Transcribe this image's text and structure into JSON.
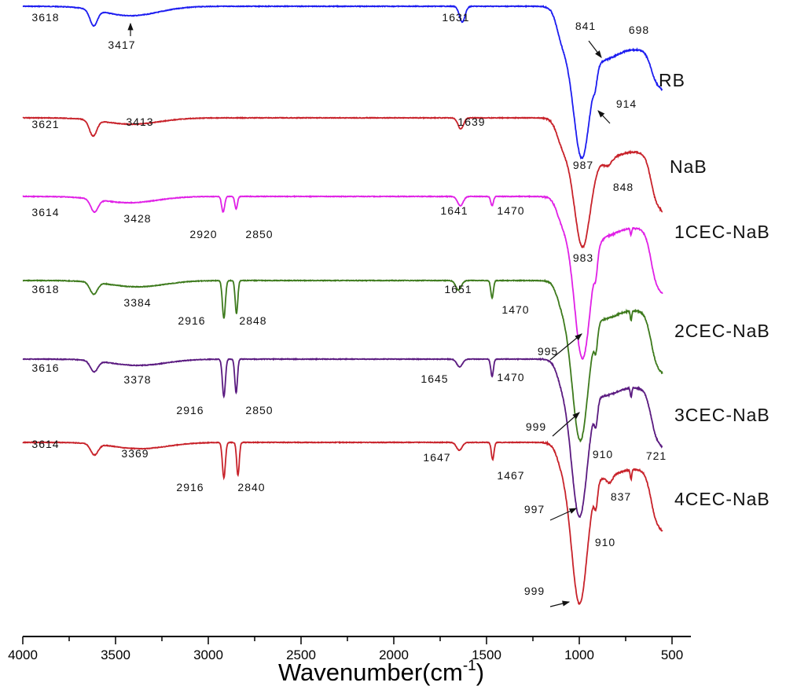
{
  "chart_data": {
    "type": "line",
    "title": "",
    "xlabel_parts": [
      "Wavenumber(cm",
      "-1",
      ")"
    ],
    "ylabel": "",
    "xlim": [
      4000,
      400
    ],
    "x_ticks": [
      4000,
      3500,
      3000,
      2500,
      2000,
      1500,
      1000,
      500
    ],
    "y_units": "transmittance (a.u., stacked, downward = absorption)",
    "series": [
      {
        "name": "RB",
        "color": "#1c1cf0",
        "offset": 8,
        "plateau": 55,
        "main": 137,
        "main_center": 987,
        "tail": 45,
        "bands": [
          [
            3618,
            20,
            20
          ],
          [
            3417,
            12,
            150
          ],
          [
            1631,
            20,
            15
          ],
          [
            914,
            15,
            10
          ],
          [
            860,
            12,
            60
          ]
        ]
      },
      {
        "name": "NaB",
        "color": "#c8222a",
        "offset": 150,
        "plateau": 43,
        "main": 120,
        "main_center": 983,
        "tail": 70,
        "bands": [
          [
            3621,
            20,
            20
          ],
          [
            3413,
            8,
            150
          ],
          [
            1639,
            14,
            15
          ],
          [
            848,
            8,
            20
          ],
          [
            860,
            10,
            60
          ]
        ]
      },
      {
        "name": "1CEC-NaB",
        "color": "#e020e6",
        "offset": 250,
        "plateau": 40,
        "main": 165,
        "main_center": 983,
        "tail": 78,
        "bands": [
          [
            3614,
            16,
            20
          ],
          [
            3428,
            8,
            150
          ],
          [
            2920,
            20,
            8
          ],
          [
            2850,
            16,
            7
          ],
          [
            1641,
            12,
            15
          ],
          [
            1470,
            12,
            7
          ],
          [
            910,
            22,
            9
          ],
          [
            860,
            10,
            60
          ],
          [
            721,
            8,
            4
          ]
        ]
      },
      {
        "name": "2CEC-NaB",
        "color": "#3d7a1c",
        "offset": 357,
        "plateau": 38,
        "main": 165,
        "main_center": 995,
        "tail": 74,
        "bands": [
          [
            3618,
            15,
            20
          ],
          [
            3384,
            8,
            150
          ],
          [
            2916,
            48,
            8
          ],
          [
            2848,
            42,
            7
          ],
          [
            1651,
            12,
            15
          ],
          [
            1470,
            22,
            7
          ],
          [
            910,
            26,
            9
          ],
          [
            860,
            10,
            60
          ],
          [
            721,
            12,
            4
          ]
        ]
      },
      {
        "name": "3CEC-NaB",
        "color": "#5a1a80",
        "offset": 457,
        "plateau": 36,
        "main": 164,
        "main_center": 999,
        "tail": 70,
        "bands": [
          [
            3616,
            14,
            20
          ],
          [
            3378,
            8,
            150
          ],
          [
            2916,
            48,
            8
          ],
          [
            2850,
            43,
            7
          ],
          [
            1645,
            10,
            15
          ],
          [
            1470,
            22,
            7
          ],
          [
            910,
            26,
            9
          ],
          [
            860,
            10,
            60
          ],
          [
            721,
            12,
            4
          ]
        ]
      },
      {
        "name": "4CEC-NaB",
        "color": "#c8222a",
        "offset": 563,
        "plateau": 34,
        "main": 171,
        "main_center": 999,
        "tail": 73,
        "bands": [
          [
            3614,
            14,
            20
          ],
          [
            3369,
            8,
            150
          ],
          [
            2916,
            45,
            8
          ],
          [
            2840,
            42,
            7
          ],
          [
            1647,
            10,
            15
          ],
          [
            1467,
            22,
            7
          ],
          [
            910,
            26,
            9
          ],
          [
            837,
            8,
            15
          ],
          [
            860,
            10,
            60
          ],
          [
            721,
            12,
            4
          ]
        ]
      }
    ],
    "annotations": [
      "3618",
      "3417",
      "1631",
      "841",
      "698",
      "914",
      "987",
      "3621",
      "3413",
      "1639",
      "848",
      "983",
      "3614",
      "3428",
      "2920",
      "2850",
      "1641",
      "1470",
      "3618",
      "3384",
      "2916",
      "2848",
      "1651",
      "1470",
      "995",
      "3616",
      "3378",
      "2916",
      "2850",
      "1645",
      "1470",
      "999",
      "910",
      "3614",
      "3369",
      "2916",
      "2840",
      "1647",
      "1467",
      "997",
      "837",
      "721",
      "910",
      "999"
    ]
  }
}
